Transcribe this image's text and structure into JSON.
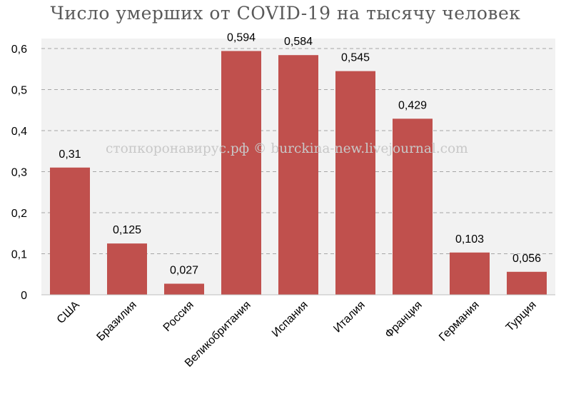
{
  "chart_data": {
    "type": "bar",
    "title": "Число умерших от COVID-19 на тысячу человек",
    "categories": [
      "США",
      "Бразилия",
      "Россия",
      "Великобритания",
      "Испания",
      "Италия",
      "Франция",
      "Германия",
      "Турция"
    ],
    "values": [
      0.31,
      0.125,
      0.027,
      0.594,
      0.584,
      0.545,
      0.429,
      0.103,
      0.056
    ],
    "value_labels": [
      "0,31",
      "0,125",
      "0,027",
      "0,594",
      "0,584",
      "0,545",
      "0,429",
      "0,103",
      "0,056"
    ],
    "y_ticks": [
      0,
      0.1,
      0.2,
      0.3,
      0.4,
      0.5,
      0.6
    ],
    "y_tick_labels": [
      "0",
      "0,1",
      "0,2",
      "0,3",
      "0,4",
      "0,5",
      "0,6"
    ],
    "ylim": [
      0,
      0.6
    ],
    "grid": "dashed horizontal",
    "bar_color": "#c0504d",
    "plot_background": "#f2f2f2",
    "watermark": "стопкоронавирус.рф © burckina-new.livejournal.com"
  }
}
